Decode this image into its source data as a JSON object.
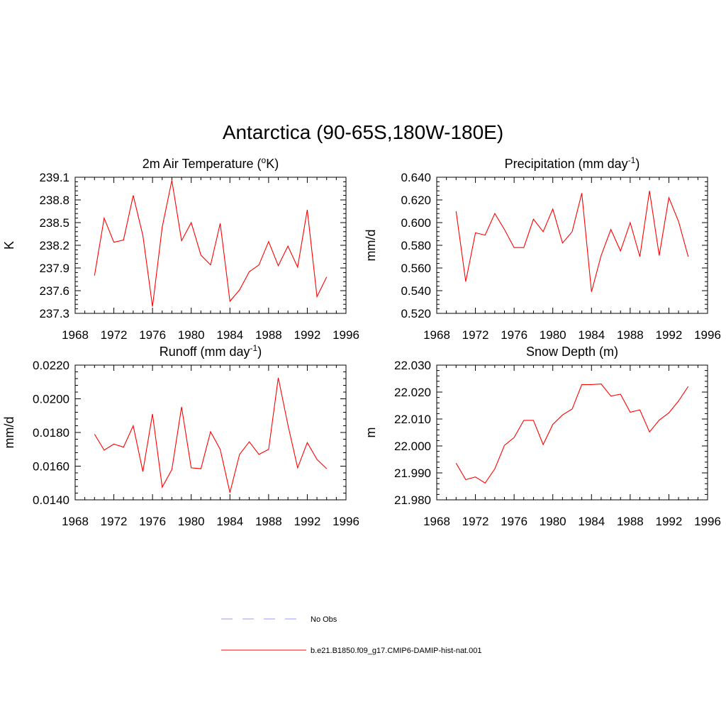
{
  "figure": {
    "title": "Antarctica (90-65S,180W-180E)"
  },
  "legend": {
    "entries": [
      {
        "label": "No Obs",
        "color": "#9999ff",
        "dash": true
      },
      {
        "label": "b.e21.B1850.f09_g17.CMIP6-DAMIP-hist-nat.001",
        "color": "#ff0000",
        "dash": false
      }
    ]
  },
  "chart_data": [
    {
      "type": "line",
      "title": "2m Air Temperature (°K)",
      "title_main": "2m Air Temperature (",
      "title_sup": "o",
      "title_tail": "K)",
      "ylabel": "K",
      "xlim": [
        1968,
        1996
      ],
      "ylim": [
        237.3,
        239.1
      ],
      "xticks": [
        1968,
        1972,
        1976,
        1980,
        1984,
        1988,
        1992,
        1996
      ],
      "yticks": [
        "237.3",
        "237.6",
        "237.9",
        "238.2",
        "238.5",
        "238.8",
        "239.1"
      ],
      "x": [
        1970,
        1971,
        1972,
        1973,
        1974,
        1975,
        1976,
        1977,
        1978,
        1979,
        1980,
        1981,
        1982,
        1983,
        1984,
        1985,
        1986,
        1987,
        1988,
        1989,
        1990,
        1991,
        1992,
        1993,
        1994
      ],
      "series": [
        {
          "color": "#ff0000",
          "values": [
            237.8,
            238.56,
            238.24,
            238.27,
            238.86,
            238.33,
            237.39,
            238.44,
            239.06,
            238.26,
            238.5,
            238.07,
            237.94,
            238.49,
            237.46,
            237.61,
            237.85,
            237.94,
            238.25,
            237.93,
            238.19,
            237.91,
            238.67,
            237.52,
            237.78
          ]
        }
      ]
    },
    {
      "type": "line",
      "title": "Precipitation (mm day-1)",
      "title_main": "Precipitation (mm day",
      "title_sup": "-1",
      "title_tail": ")",
      "ylabel": "mm/d",
      "xlim": [
        1968,
        1996
      ],
      "ylim": [
        0.52,
        0.64
      ],
      "xticks": [
        1968,
        1972,
        1976,
        1980,
        1984,
        1988,
        1992,
        1996
      ],
      "yticks": [
        "0.520",
        "0.540",
        "0.560",
        "0.580",
        "0.600",
        "0.620",
        "0.640"
      ],
      "x": [
        1970,
        1971,
        1972,
        1973,
        1974,
        1975,
        1976,
        1977,
        1978,
        1979,
        1980,
        1981,
        1982,
        1983,
        1984,
        1985,
        1986,
        1987,
        1988,
        1989,
        1990,
        1991,
        1992,
        1993,
        1994
      ],
      "series": [
        {
          "color": "#ff0000",
          "values": [
            0.61,
            0.548,
            0.591,
            0.589,
            0.608,
            0.594,
            0.578,
            0.578,
            0.603,
            0.592,
            0.612,
            0.582,
            0.592,
            0.626,
            0.539,
            0.571,
            0.594,
            0.575,
            0.6,
            0.57,
            0.628,
            0.571,
            0.622,
            0.601,
            0.57
          ]
        }
      ]
    },
    {
      "type": "line",
      "title": "Runoff (mm day-1)",
      "title_main": "Runoff (mm day",
      "title_sup": "-1",
      "title_tail": ")",
      "ylabel": "mm/d",
      "xlim": [
        1968,
        1996
      ],
      "ylim": [
        0.014,
        0.022
      ],
      "xticks": [
        1968,
        1972,
        1976,
        1980,
        1984,
        1988,
        1992,
        1996
      ],
      "yticks": [
        "0.0140",
        "0.0160",
        "0.0180",
        "0.0200",
        "0.0220"
      ],
      "x": [
        1970,
        1971,
        1972,
        1973,
        1974,
        1975,
        1976,
        1977,
        1978,
        1979,
        1980,
        1981,
        1982,
        1983,
        1984,
        1985,
        1986,
        1987,
        1988,
        1989,
        1990,
        1991,
        1992,
        1993,
        1994
      ],
      "series": [
        {
          "color": "#ff0000",
          "values": [
            0.0179,
            0.01695,
            0.01731,
            0.01713,
            0.0184,
            0.01568,
            0.0191,
            0.01475,
            0.0158,
            0.01952,
            0.0159,
            0.01585,
            0.01805,
            0.017,
            0.01443,
            0.0167,
            0.01745,
            0.0167,
            0.017,
            0.02125,
            0.01845,
            0.0159,
            0.0174,
            0.0164,
            0.01585
          ]
        }
      ]
    },
    {
      "type": "line",
      "title": "Snow Depth (m)",
      "title_main": "Snow Depth (m)",
      "title_sup": "",
      "title_tail": "",
      "ylabel": "m",
      "xlim": [
        1968,
        1996
      ],
      "ylim": [
        21.98,
        22.03
      ],
      "xticks": [
        1968,
        1972,
        1976,
        1980,
        1984,
        1988,
        1992,
        1996
      ],
      "yticks": [
        "21.980",
        "21.990",
        "22.000",
        "22.010",
        "22.020",
        "22.030"
      ],
      "x": [
        1970,
        1971,
        1972,
        1973,
        1974,
        1975,
        1976,
        1977,
        1978,
        1979,
        1980,
        1981,
        1982,
        1983,
        1984,
        1985,
        1986,
        1987,
        1988,
        1989,
        1990,
        1991,
        1992,
        1993,
        1994
      ],
      "series": [
        {
          "color": "#ff0000",
          "values": [
            21.9936,
            21.9875,
            21.9885,
            21.9862,
            21.9915,
            22.0002,
            22.0031,
            22.0095,
            22.0095,
            22.0005,
            22.008,
            22.0115,
            22.0137,
            22.0228,
            22.0228,
            22.023,
            22.0185,
            22.0192,
            22.0125,
            22.0134,
            22.0052,
            22.0096,
            22.0123,
            22.0167,
            22.0221
          ]
        }
      ]
    }
  ]
}
